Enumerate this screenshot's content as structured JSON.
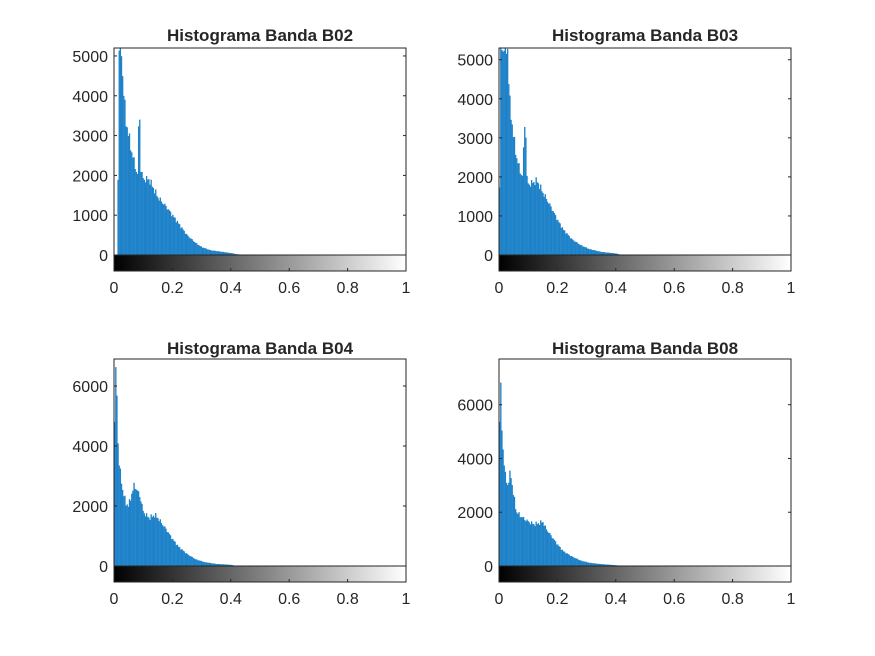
{
  "figure": {
    "background": "#ffffff"
  },
  "chart_data": [
    {
      "type": "histogram",
      "title": "Histograma Banda B02",
      "bar_color": "#1f82c9",
      "colorbar": "gray",
      "xlim": [
        0,
        1
      ],
      "ylim": [
        0,
        5200
      ],
      "xticks": [
        "0",
        "0.2",
        "0.4",
        "0.6",
        "0.8",
        "1"
      ],
      "yticks": [
        "0",
        "1000",
        "2000",
        "3000",
        "4000",
        "5000"
      ],
      "ytick_values": [
        0,
        1000,
        2000,
        3000,
        4000,
        5000
      ],
      "profile": [
        [
          0.012,
          0
        ],
        [
          0.014,
          2300
        ],
        [
          0.016,
          5200
        ],
        [
          0.025,
          5200
        ],
        [
          0.03,
          4400
        ],
        [
          0.04,
          3400
        ],
        [
          0.05,
          3000
        ],
        [
          0.06,
          2600
        ],
        [
          0.07,
          2300
        ],
        [
          0.08,
          2000
        ],
        [
          0.087,
          4000
        ],
        [
          0.09,
          2200
        ],
        [
          0.1,
          1900
        ],
        [
          0.12,
          1900
        ],
        [
          0.13,
          1750
        ],
        [
          0.15,
          1450
        ],
        [
          0.18,
          1200
        ],
        [
          0.2,
          1000
        ],
        [
          0.22,
          800
        ],
        [
          0.25,
          500
        ],
        [
          0.28,
          300
        ],
        [
          0.3,
          200
        ],
        [
          0.33,
          120
        ],
        [
          0.36,
          90
        ],
        [
          0.4,
          50
        ],
        [
          0.42,
          20
        ],
        [
          0.45,
          0
        ]
      ]
    },
    {
      "type": "histogram",
      "title": "Histograma Banda B03",
      "bar_color": "#1f82c9",
      "colorbar": "gray",
      "xlim": [
        0,
        1
      ],
      "ylim": [
        0,
        5300
      ],
      "xticks": [
        "0",
        "0.2",
        "0.4",
        "0.6",
        "0.8",
        "1"
      ],
      "yticks": [
        "0",
        "1000",
        "2000",
        "3000",
        "4000",
        "5000"
      ],
      "ytick_values": [
        0,
        1000,
        2000,
        3000,
        4000,
        5000
      ],
      "profile": [
        [
          0.0,
          0
        ],
        [
          0.006,
          5300
        ],
        [
          0.03,
          5300
        ],
        [
          0.035,
          4000
        ],
        [
          0.05,
          3000
        ],
        [
          0.06,
          2500
        ],
        [
          0.07,
          2200
        ],
        [
          0.08,
          2000
        ],
        [
          0.09,
          3700
        ],
        [
          0.095,
          2000
        ],
        [
          0.1,
          1800
        ],
        [
          0.13,
          1900
        ],
        [
          0.15,
          1600
        ],
        [
          0.18,
          1200
        ],
        [
          0.2,
          900
        ],
        [
          0.22,
          650
        ],
        [
          0.25,
          400
        ],
        [
          0.28,
          250
        ],
        [
          0.31,
          150
        ],
        [
          0.35,
          80
        ],
        [
          0.4,
          40
        ],
        [
          0.42,
          0
        ]
      ]
    },
    {
      "type": "histogram",
      "title": "Histograma Banda B04",
      "bar_color": "#1f82c9",
      "colorbar": "gray",
      "xlim": [
        0,
        1
      ],
      "ylim": [
        0,
        6900
      ],
      "xticks": [
        "0",
        "0.2",
        "0.4",
        "0.6",
        "0.8",
        "1"
      ],
      "yticks": [
        "0",
        "2000",
        "4000",
        "6000"
      ],
      "ytick_values": [
        0,
        2000,
        4000,
        6000
      ],
      "profile": [
        [
          0.0,
          900
        ],
        [
          0.003,
          6900
        ],
        [
          0.01,
          5700
        ],
        [
          0.015,
          3600
        ],
        [
          0.02,
          3200
        ],
        [
          0.03,
          2500
        ],
        [
          0.04,
          2100
        ],
        [
          0.05,
          2000
        ],
        [
          0.06,
          2400
        ],
        [
          0.07,
          2700
        ],
        [
          0.08,
          2500
        ],
        [
          0.09,
          2300
        ],
        [
          0.1,
          1800
        ],
        [
          0.12,
          1600
        ],
        [
          0.14,
          1700
        ],
        [
          0.15,
          1600
        ],
        [
          0.18,
          1200
        ],
        [
          0.2,
          900
        ],
        [
          0.22,
          650
        ],
        [
          0.25,
          400
        ],
        [
          0.28,
          220
        ],
        [
          0.31,
          130
        ],
        [
          0.35,
          70
        ],
        [
          0.4,
          40
        ],
        [
          0.42,
          0
        ]
      ]
    },
    {
      "type": "histogram",
      "title": "Histograma Banda B08",
      "bar_color": "#1f82c9",
      "colorbar": "gray",
      "xlim": [
        0,
        1
      ],
      "ylim": [
        0,
        7700
      ],
      "xticks": [
        "0",
        "0.2",
        "0.4",
        "0.6",
        "0.8",
        "1"
      ],
      "yticks": [
        "0",
        "2000",
        "4000",
        "6000"
      ],
      "ytick_values": [
        0,
        2000,
        4000,
        6000
      ],
      "profile": [
        [
          0.0,
          1000
        ],
        [
          0.003,
          7700
        ],
        [
          0.01,
          5000
        ],
        [
          0.02,
          3400
        ],
        [
          0.03,
          3000
        ],
        [
          0.04,
          3500
        ],
        [
          0.045,
          3000
        ],
        [
          0.05,
          2600
        ],
        [
          0.06,
          2000
        ],
        [
          0.08,
          1800
        ],
        [
          0.1,
          1650
        ],
        [
          0.12,
          1550
        ],
        [
          0.14,
          1600
        ],
        [
          0.15,
          1650
        ],
        [
          0.16,
          1400
        ],
        [
          0.18,
          1100
        ],
        [
          0.2,
          800
        ],
        [
          0.22,
          550
        ],
        [
          0.25,
          350
        ],
        [
          0.28,
          200
        ],
        [
          0.31,
          120
        ],
        [
          0.35,
          70
        ],
        [
          0.4,
          30
        ],
        [
          0.42,
          0
        ]
      ]
    }
  ]
}
